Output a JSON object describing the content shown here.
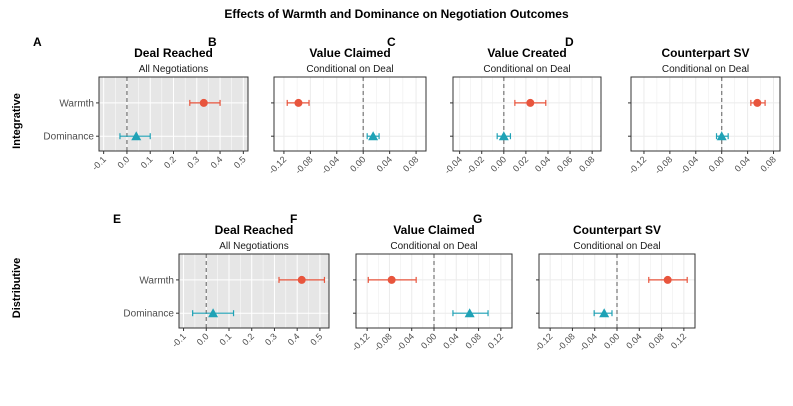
{
  "title": "Effects of Warmth and Dominance on Negotiation Outcomes",
  "row_labels": [
    "Integrative",
    "Distributive"
  ],
  "categories": [
    "Warmth",
    "Dominance"
  ],
  "colors": {
    "warmth": "#E8553D",
    "dominance": "#1FA2B6",
    "shaded_panel_bg": "#E6E6E6",
    "plain_panel_bg": "#FFFFFF",
    "grid_on_shaded": "#FFFFFF",
    "grid_on_plain": "#EBEBEB",
    "zero_line": "#808080"
  },
  "chart_data": [
    {
      "type": "scatter",
      "letter": "A",
      "title": "Deal Reached",
      "subtitle": "All Negotiations",
      "shaded": true,
      "show_category_labels": true,
      "xlim": [
        -0.12,
        0.52
      ],
      "ticks": [
        -0.1,
        0.0,
        0.1,
        0.2,
        0.3,
        0.4,
        0.5
      ],
      "tick_labels": [
        "-0.1",
        "0.0",
        "0.1",
        "0.2",
        "0.3",
        "0.4",
        "0.5"
      ],
      "series": [
        {
          "category": "Warmth",
          "estimate": 0.33,
          "low": 0.27,
          "high": 0.4
        },
        {
          "category": "Dominance",
          "estimate": 0.04,
          "low": -0.03,
          "high": 0.1
        }
      ]
    },
    {
      "type": "scatter",
      "letter": "B",
      "title": "Value Claimed",
      "subtitle": "Conditional on Deal",
      "shaded": false,
      "show_category_labels": false,
      "xlim": [
        -0.135,
        0.095
      ],
      "ticks": [
        -0.12,
        -0.08,
        -0.04,
        0.0,
        0.04,
        0.08
      ],
      "tick_labels": [
        "-0.12",
        "-0.08",
        "-0.04",
        "0.00",
        "0.04",
        "0.08"
      ],
      "series": [
        {
          "category": "Warmth",
          "estimate": -0.098,
          "low": -0.115,
          "high": -0.082
        },
        {
          "category": "Dominance",
          "estimate": 0.015,
          "low": 0.006,
          "high": 0.024
        }
      ]
    },
    {
      "type": "scatter",
      "letter": "C",
      "title": "Value Created",
      "subtitle": "Conditional on Deal",
      "shaded": false,
      "show_category_labels": false,
      "xlim": [
        -0.046,
        0.088
      ],
      "ticks": [
        -0.04,
        -0.02,
        0.0,
        0.02,
        0.04,
        0.06,
        0.08
      ],
      "tick_labels": [
        "-0.04",
        "-0.02",
        "0.00",
        "0.02",
        "0.04",
        "0.06",
        "0.08"
      ],
      "series": [
        {
          "category": "Warmth",
          "estimate": 0.024,
          "low": 0.01,
          "high": 0.038
        },
        {
          "category": "Dominance",
          "estimate": 0.0,
          "low": -0.006,
          "high": 0.006
        }
      ]
    },
    {
      "type": "scatter",
      "letter": "D",
      "title": "Counterpart SV",
      "subtitle": "Conditional on Deal",
      "shaded": false,
      "show_category_labels": false,
      "xlim": [
        -0.14,
        0.09
      ],
      "ticks": [
        -0.12,
        -0.08,
        -0.04,
        0.0,
        0.04,
        0.08
      ],
      "tick_labels": [
        "-0.12",
        "-0.08",
        "-0.04",
        "0.00",
        "0.04",
        "0.08"
      ],
      "series": [
        {
          "category": "Warmth",
          "estimate": 0.055,
          "low": 0.045,
          "high": 0.067
        },
        {
          "category": "Dominance",
          "estimate": 0.0,
          "low": -0.008,
          "high": 0.01
        }
      ]
    },
    {
      "type": "scatter",
      "letter": "E",
      "title": "Deal Reached",
      "subtitle": "All Negotiations",
      "shaded": true,
      "show_category_labels": true,
      "xlim": [
        -0.12,
        0.54
      ],
      "ticks": [
        -0.1,
        0.0,
        0.1,
        0.2,
        0.3,
        0.4,
        0.5
      ],
      "tick_labels": [
        "-0.1",
        "0.0",
        "0.1",
        "0.2",
        "0.3",
        "0.4",
        "0.5"
      ],
      "series": [
        {
          "category": "Warmth",
          "estimate": 0.42,
          "low": 0.32,
          "high": 0.52
        },
        {
          "category": "Dominance",
          "estimate": 0.03,
          "low": -0.06,
          "high": 0.12
        }
      ]
    },
    {
      "type": "scatter",
      "letter": "F",
      "title": "Value Claimed",
      "subtitle": "Conditional on Deal",
      "shaded": false,
      "show_category_labels": false,
      "xlim": [
        -0.14,
        0.14
      ],
      "ticks": [
        -0.12,
        -0.08,
        -0.04,
        0.0,
        0.04,
        0.08,
        0.12
      ],
      "tick_labels": [
        "-0.12",
        "-0.08",
        "-0.04",
        "0.00",
        "0.04",
        "0.08",
        "0.12"
      ],
      "series": [
        {
          "category": "Warmth",
          "estimate": -0.076,
          "low": -0.118,
          "high": -0.032
        },
        {
          "category": "Dominance",
          "estimate": 0.064,
          "low": 0.034,
          "high": 0.097
        }
      ]
    },
    {
      "type": "scatter",
      "letter": "G",
      "title": "Counterpart SV",
      "subtitle": "Conditional on Deal",
      "shaded": false,
      "show_category_labels": false,
      "xlim": [
        -0.14,
        0.14
      ],
      "ticks": [
        -0.12,
        -0.08,
        -0.04,
        0.0,
        0.04,
        0.08,
        0.12
      ],
      "tick_labels": [
        "-0.12",
        "-0.08",
        "-0.04",
        "0.00",
        "0.04",
        "0.08",
        "0.12"
      ],
      "series": [
        {
          "category": "Warmth",
          "estimate": 0.091,
          "low": 0.057,
          "high": 0.126
        },
        {
          "category": "Dominance",
          "estimate": -0.023,
          "low": -0.041,
          "high": -0.009
        }
      ]
    }
  ]
}
